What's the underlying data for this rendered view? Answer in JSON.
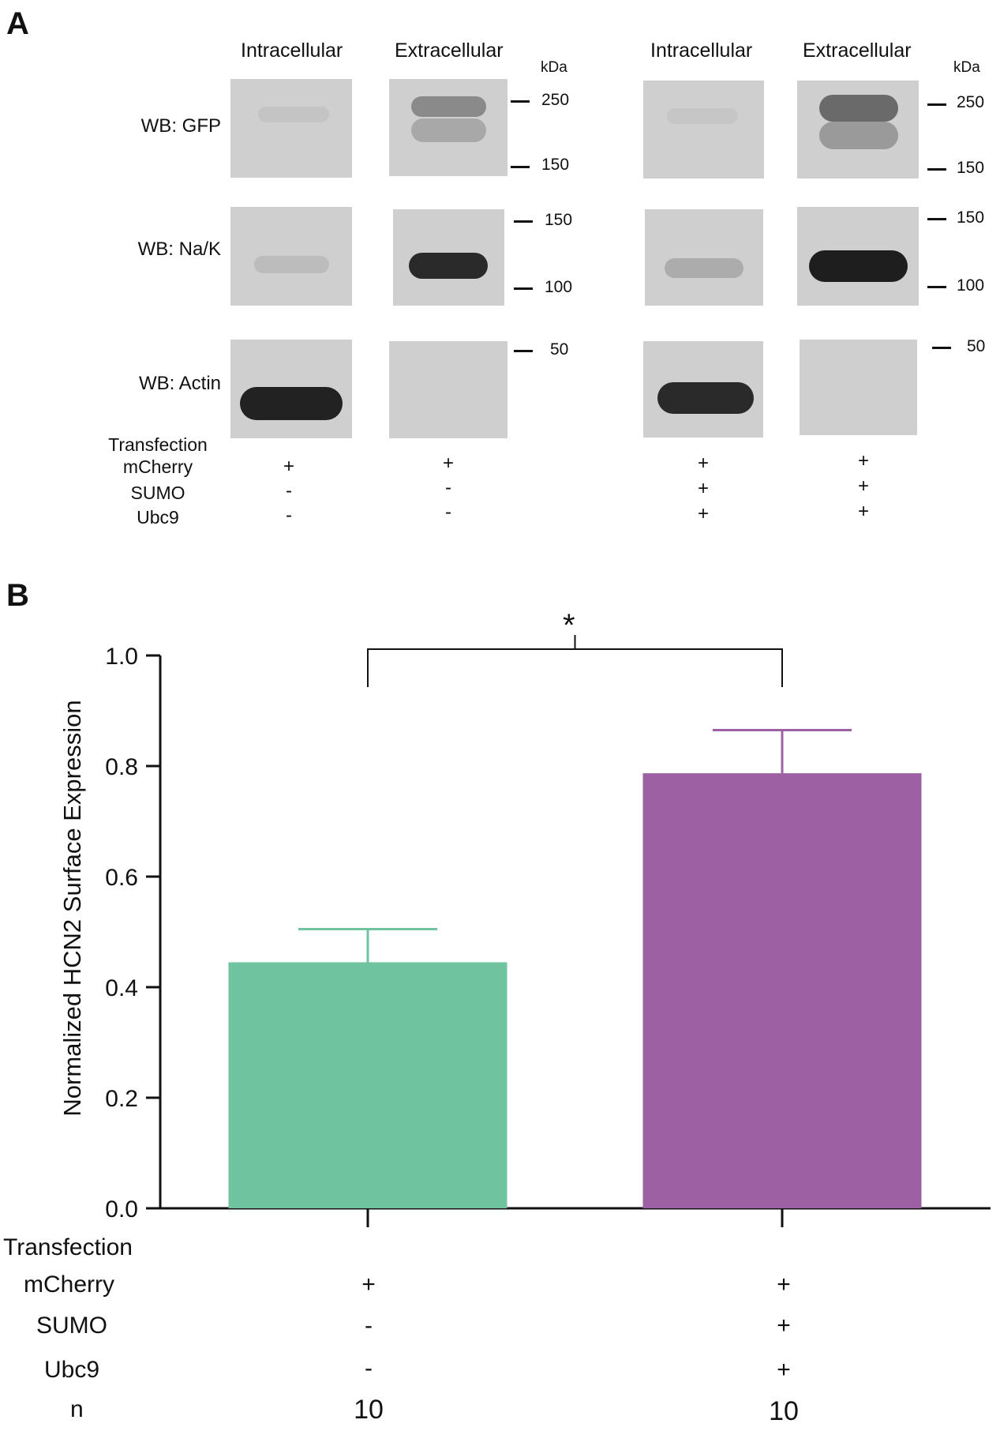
{
  "panel_a": {
    "letter": "A",
    "column_headers": [
      "Intracellular",
      "Extracellular",
      "Intracellular",
      "Extracellular"
    ],
    "kda_label": "kDa",
    "wb_labels": [
      "WB: GFP",
      "WB: Na/K",
      "WB: Actin"
    ],
    "markers": {
      "gfp": [
        "250",
        "150"
      ],
      "nak": [
        "150",
        "100"
      ],
      "actin": [
        "50"
      ]
    },
    "conditions": {
      "labels": [
        "Transfection",
        "mCherry",
        "SUMO",
        "Ubc9"
      ],
      "lanes": [
        {
          "mCherry": "+",
          "SUMO": "-",
          "Ubc9": "-"
        },
        {
          "mCherry": "+",
          "SUMO": "-",
          "Ubc9": "-"
        },
        {
          "mCherry": "+",
          "SUMO": "+",
          "Ubc9": "+"
        },
        {
          "mCherry": "+",
          "SUMO": "+",
          "Ubc9": "+"
        }
      ]
    }
  },
  "panel_b": {
    "letter": "B",
    "significance": "*",
    "conditions": {
      "labels": [
        "Transfection",
        "mCherry",
        "SUMO",
        "Ubc9",
        "n"
      ],
      "groups": [
        {
          "mCherry": "+",
          "SUMO": "-",
          "Ubc9": "-",
          "n": "10"
        },
        {
          "mCherry": "+",
          "SUMO": "+",
          "Ubc9": "+",
          "n": "10"
        }
      ]
    }
  },
  "chart_data": {
    "type": "bar",
    "title": "",
    "xlabel": "",
    "ylabel": "Normalized HCN2 Surface Expression",
    "categories": [
      "mCherry",
      "mCherry + SUMO + Ubc9"
    ],
    "values": [
      0.445,
      0.787
    ],
    "errors": [
      0.06,
      0.078
    ],
    "colors": [
      "#6fc39e",
      "#9c60a3"
    ],
    "ylim": [
      0.0,
      1.0
    ],
    "yticks": [
      "0.0",
      "0.2",
      "0.4",
      "0.6",
      "0.8",
      "1.0"
    ],
    "ytick_values": [
      0.0,
      0.2,
      0.4,
      0.6,
      0.8,
      1.0
    ],
    "grid": false
  }
}
